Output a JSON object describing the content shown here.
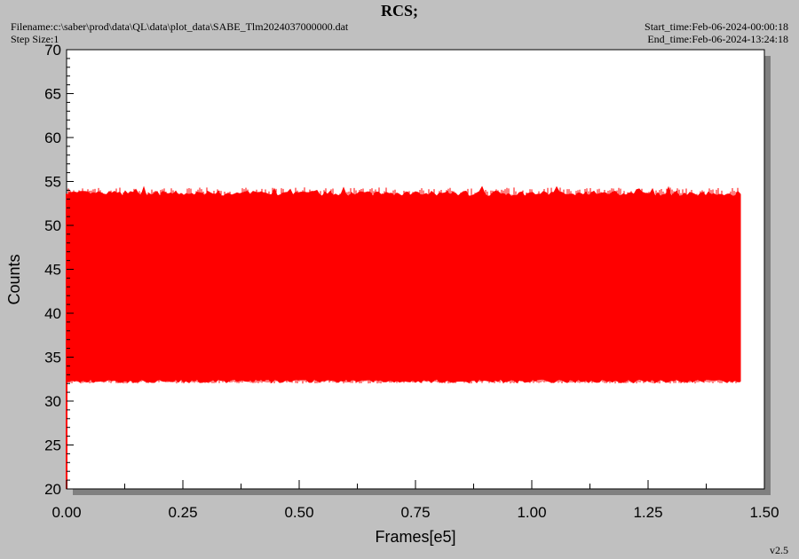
{
  "header": {
    "title": "RCS;",
    "filename": "Filename:c:\\saber\\prod\\data\\QL\\data\\plot_data\\SABE_Tlm2024037000000.dat",
    "step_size": "Step Size:1",
    "start_time": "Start_time:Feb-06-2024-00:00:18",
    "end_time": "End_time:Feb-06-2024-13:24:18",
    "version": "v2.5"
  },
  "colors": {
    "background": "#c0c0c0",
    "plot_area": "#ffffff",
    "series": "#ff0000",
    "shadow": "#808080"
  },
  "chart_data": {
    "type": "area",
    "title": "RCS;",
    "xlabel": "Frames[e5]",
    "ylabel": "Counts",
    "xlim": [
      0.0,
      1.5
    ],
    "ylim": [
      20,
      70
    ],
    "x_ticks": [
      0.0,
      0.25,
      0.5,
      0.75,
      1.0,
      1.25,
      1.5
    ],
    "x_tick_labels": [
      "0.00",
      "0.25",
      "0.50",
      "0.75",
      "1.00",
      "1.25",
      "1.50"
    ],
    "y_ticks": [
      20,
      25,
      30,
      35,
      40,
      45,
      50,
      55,
      60,
      65,
      70
    ],
    "y_tick_labels": [
      "20",
      "25",
      "30",
      "35",
      "40",
      "45",
      "50",
      "55",
      "60",
      "65",
      "70"
    ],
    "grid": false,
    "series": [
      {
        "color": "#ff0000",
        "description_values": {
          "x_start": 0.0,
          "x_end": 1.45,
          "typical_min": 32.3,
          "typical_max": 53.6,
          "extreme_min": 32.1,
          "extreme_max": 54.4
        }
      }
    ]
  }
}
